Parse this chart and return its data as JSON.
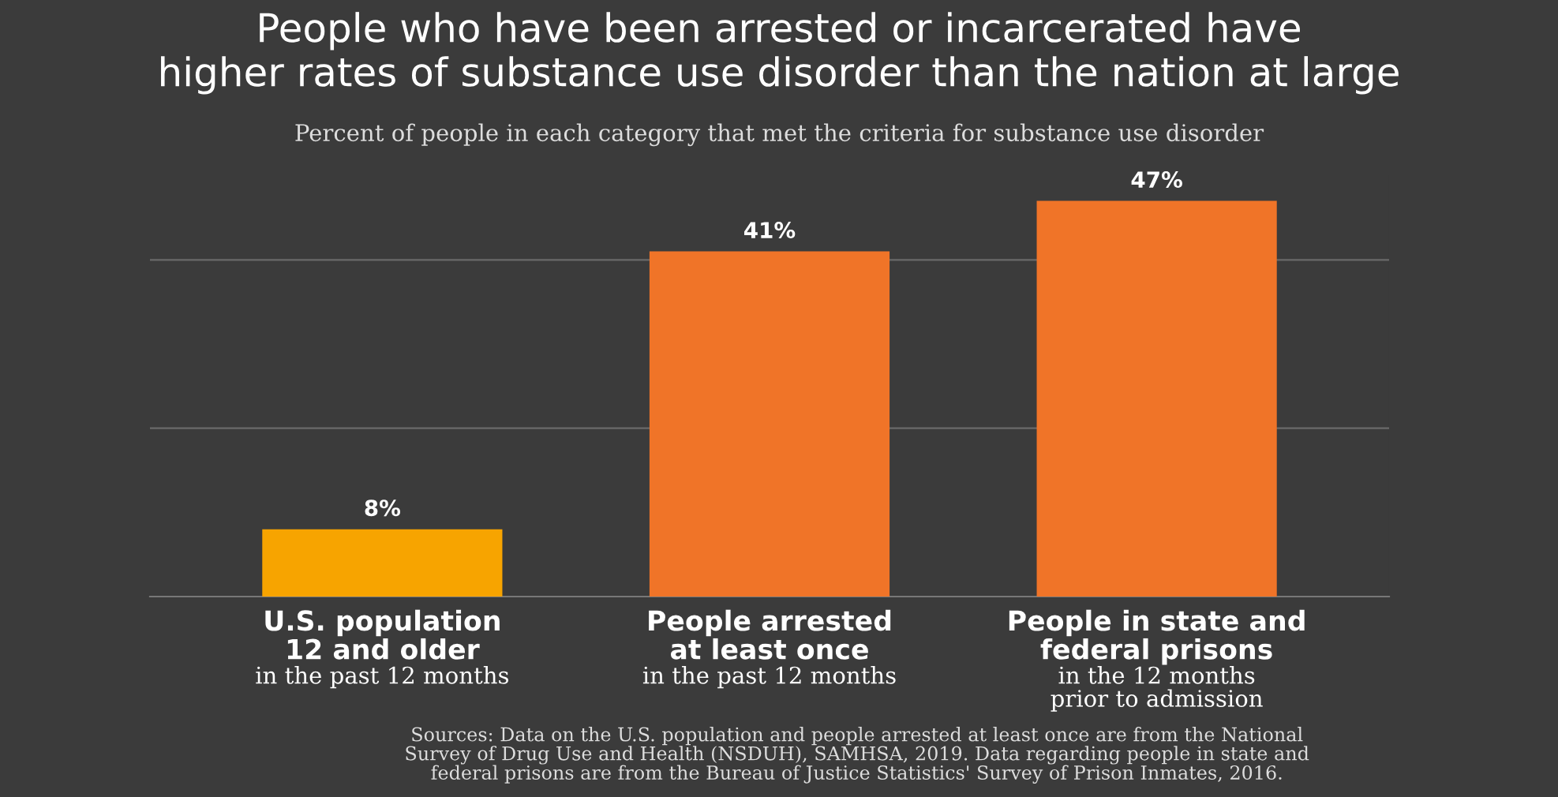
{
  "chart_data": {
    "type": "bar",
    "title": "People who have been arrested or incarcerated have\nhigher rates of substance use disorder than the nation at large",
    "subtitle": "Percent of people in each category that met the criteria for substance use disorder",
    "categories": [
      "U.S. population\n12 and older",
      "People arrested\nat least once",
      "People in state and\nfederal prisons"
    ],
    "values": [
      8,
      41,
      47
    ],
    "colors": [
      "#f7a400",
      "#f07428",
      "#f07428"
    ],
    "value_labels": [
      "8%",
      "41%",
      "47%"
    ],
    "ref_lines": [
      {
        "axis": "y",
        "value": 20,
        "color": "#6a6a6a"
      },
      {
        "axis": "y",
        "value": 40,
        "color": "#6a6a6a"
      }
    ],
    "tick_labels": "x",
    "annotations": [
      "in the past 12 months",
      "in the past 12 months",
      "in the 12 months\nprior to admission",
      "Sources: Data on the U.S. population and people arrested at least once are from the National\nSurvey of Drug Use and Health (NSDUH), SAMHSA, 2019. Data regarding people in state and\nfederal prisons are from the Bureau of Justice Statistics' Survey of Prison Inmates, 2016."
    ]
  }
}
